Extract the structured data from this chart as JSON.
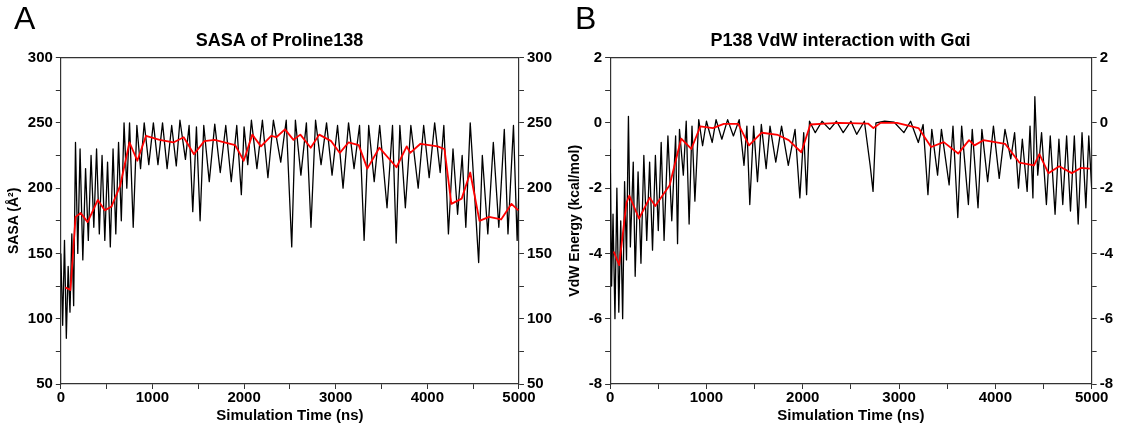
{
  "chart_data": [
    {
      "type": "line",
      "title": "SASA of Proline138",
      "xlabel": "Simulation Time (ns)",
      "ylabel": "SASA (Å²)",
      "annotations": [
        "A"
      ],
      "xlim": [
        0,
        5000
      ],
      "xticks": [
        0,
        {
          "value": 500,
          "label": null
        },
        1000,
        {
          "value": 1500,
          "label": null
        },
        2000,
        {
          "value": 2500,
          "label": null
        },
        3000,
        {
          "value": 3500,
          "label": null
        },
        4000,
        {
          "value": 4500,
          "label": null
        },
        5000
      ],
      "ylim": [
        50,
        300
      ],
      "yticks": [
        50,
        {
          "value": 75,
          "label": null
        },
        100,
        {
          "value": 125,
          "label": null
        },
        150,
        {
          "value": 175,
          "label": null
        },
        200,
        {
          "value": 225,
          "label": null
        },
        250,
        {
          "value": 275,
          "label": null
        },
        300
      ],
      "y2lim": [
        50,
        300
      ],
      "y2ticks": [
        50,
        {
          "value": 75,
          "label": null
        },
        100,
        {
          "value": 125,
          "label": null
        },
        150,
        {
          "value": 175,
          "label": null
        },
        200,
        {
          "value": 225,
          "label": null
        },
        250,
        {
          "value": 275,
          "label": null
        },
        300
      ],
      "grid": false,
      "legend": false,
      "marker": "none",
      "line_style": "solid",
      "series": [
        {
          "color": "#000000",
          "x": [
            0,
            20,
            40,
            60,
            80,
            100,
            120,
            140,
            160,
            185,
            210,
            240,
            270,
            300,
            330,
            360,
            390,
            420,
            450,
            480,
            510,
            540,
            570,
            600,
            630,
            660,
            690,
            720,
            750,
            790,
            830,
            870,
            910,
            960,
            1010,
            1060,
            1110,
            1160,
            1210,
            1260,
            1300,
            1360,
            1400,
            1440,
            1480,
            1520,
            1560,
            1620,
            1680,
            1740,
            1800,
            1860,
            1920,
            1970,
            2000,
            2040,
            2080,
            2140,
            2200,
            2260,
            2320,
            2400,
            2460,
            2520,
            2560,
            2620,
            2680,
            2730,
            2780,
            2840,
            2900,
            2960,
            3020,
            3080,
            3140,
            3200,
            3260,
            3310,
            3360,
            3420,
            3480,
            3560,
            3620,
            3660,
            3700,
            3760,
            3820,
            3900,
            3960,
            4020,
            4080,
            4140,
            4180,
            4230,
            4280,
            4330,
            4380,
            4420,
            4468,
            4520,
            4560,
            4600,
            4660,
            4720,
            4780,
            4840,
            4880,
            4940,
            4980,
            5000
          ],
          "values": [
            150,
            95,
            160,
            85,
            140,
            105,
            165,
            110,
            235,
            150,
            230,
            145,
            215,
            160,
            225,
            170,
            230,
            165,
            225,
            160,
            220,
            155,
            230,
            165,
            235,
            175,
            250,
            200,
            250,
            170,
            248,
            215,
            250,
            218,
            250,
            218,
            250,
            215,
            248,
            217,
            252,
            222,
            248,
            182,
            247,
            175,
            248,
            205,
            249,
            212,
            248,
            205,
            248,
            195,
            247,
            218,
            252,
            215,
            252,
            208,
            252,
            220,
            252,
            155,
            252,
            210,
            250,
            170,
            252,
            218,
            250,
            210,
            248,
            200,
            250,
            215,
            248,
            160,
            248,
            205,
            248,
            185,
            248,
            158,
            248,
            185,
            248,
            200,
            248,
            208,
            250,
            212,
            248,
            165,
            230,
            180,
            225,
            170,
            250,
            190,
            143,
            225,
            165,
            235,
            170,
            245,
            165,
            248,
            160,
            200
          ]
        },
        {
          "color": "#ff0000",
          "x": [
            49,
            105,
            161,
            217,
            292,
            404,
            479,
            554,
            648,
            749,
            835,
            929,
            1079,
            1228,
            1341,
            1453,
            1566,
            1678,
            1903,
            1996,
            2090,
            2184,
            2296,
            2352,
            2446,
            2539,
            2614,
            2727,
            2820,
            2951,
            3045,
            3139,
            3251,
            3345,
            3476,
            3663,
            3775,
            3813,
            3925,
            4112,
            4187,
            4262,
            4375,
            4468,
            4569,
            4674,
            4805,
            4918,
            4993
          ],
          "values": [
            124,
            122,
            178,
            181,
            174,
            191,
            183,
            186,
            202,
            235,
            221,
            240,
            237,
            235,
            239,
            226,
            236,
            237,
            233,
            221,
            241,
            232,
            240,
            239,
            245,
            237,
            241,
            231,
            241,
            236,
            227,
            235,
            233,
            215,
            231,
            216,
            232,
            227,
            234,
            232,
            230,
            188,
            192,
            212,
            175,
            178,
            176,
            188,
            183
          ]
        }
      ]
    },
    {
      "type": "line",
      "title": "P138 VdW interaction with Gαi",
      "xlabel": "Simulation Time (ns)",
      "ylabel": "VdW Energy (kcal/mol)",
      "annotations": [
        "B"
      ],
      "xlim": [
        0,
        5000
      ],
      "xticks": [
        0,
        {
          "value": 500,
          "label": null
        },
        1000,
        {
          "value": 1500,
          "label": null
        },
        2000,
        {
          "value": 2500,
          "label": null
        },
        3000,
        {
          "value": 3500,
          "label": null
        },
        4000,
        {
          "value": 4500,
          "label": null
        },
        5000
      ],
      "ylim": [
        -8,
        2
      ],
      "yticks": [
        -8,
        {
          "value": -7,
          "label": null
        },
        -6,
        {
          "value": -5,
          "label": null
        },
        -4,
        {
          "value": -3,
          "label": null
        },
        -2,
        {
          "value": -1,
          "label": null
        },
        0,
        {
          "value": 1,
          "label": null
        },
        2
      ],
      "y2lim": [
        -8,
        2
      ],
      "y2ticks": [
        -8,
        {
          "value": -7,
          "label": null
        },
        -6,
        {
          "value": -5,
          "label": null
        },
        -4,
        {
          "value": -3,
          "label": null
        },
        -2,
        {
          "value": -1,
          "label": null
        },
        0,
        {
          "value": 1,
          "label": null
        },
        2
      ],
      "grid": false,
      "legend": false,
      "marker": "none",
      "line_style": "solid",
      "series": [
        {
          "color": "#000000",
          "x": [
            0,
            15,
            30,
            50,
            70,
            90,
            110,
            130,
            150,
            170,
            190,
            210,
            240,
            260,
            290,
            320,
            350,
            380,
            410,
            440,
            470,
            500,
            530,
            560,
            600,
            640,
            680,
            700,
            720,
            760,
            790,
            820,
            850,
            880,
            920,
            960,
            1000,
            1060,
            1100,
            1160,
            1220,
            1280,
            1340,
            1390,
            1420,
            1450,
            1490,
            1530,
            1570,
            1620,
            1660,
            1720,
            1780,
            1850,
            1920,
            1970,
            2010,
            2040,
            2070,
            2130,
            2200,
            2280,
            2350,
            2420,
            2500,
            2560,
            2640,
            2700,
            2730,
            2760,
            2850,
            2950,
            3050,
            3120,
            3200,
            3250,
            3300,
            3340,
            3400,
            3440,
            3520,
            3560,
            3610,
            3650,
            3720,
            3760,
            3820,
            3860,
            3920,
            3980,
            4040,
            4100,
            4160,
            4200,
            4240,
            4280,
            4330,
            4360,
            4390,
            4410,
            4440,
            4480,
            4530,
            4570,
            4620,
            4660,
            4700,
            4740,
            4780,
            4820,
            4860,
            4900,
            4940,
            4970,
            5000
          ],
          "values": [
            -0.8,
            -5.0,
            -2.8,
            -6.0,
            -2.0,
            -5.8,
            -3.0,
            -6.0,
            -1.8,
            -4.2,
            0.2,
            -3.8,
            -1.2,
            -4.7,
            -1.5,
            -4.3,
            -1.0,
            -3.6,
            -1.2,
            -3.9,
            -1.0,
            -3.3,
            -0.6,
            -3.6,
            -0.4,
            -3.0,
            -0.4,
            -3.7,
            -0.2,
            -1.6,
            0.05,
            -3.1,
            -0.1,
            -2.4,
            0.1,
            -0.7,
            0.05,
            -0.6,
            0.1,
            -0.5,
            0.1,
            -0.4,
            0.1,
            -1.3,
            -0.1,
            -2.5,
            -0.1,
            -1.8,
            -0.05,
            -1.4,
            -0.1,
            -1.2,
            -0.1,
            -1.3,
            -0.2,
            -2.3,
            -0.3,
            -2.2,
            0.05,
            -0.3,
            0.05,
            -0.2,
            0.05,
            -0.3,
            0.05,
            -0.35,
            0.05,
            -1.3,
            -2.1,
            0.0,
            0.05,
            0.02,
            -0.3,
            0.05,
            -0.6,
            -0.05,
            -2.2,
            -0.2,
            -1.6,
            -0.2,
            -1.9,
            -0.1,
            -2.9,
            -0.1,
            -2.5,
            -0.2,
            -2.6,
            -0.2,
            -1.8,
            -0.1,
            -1.7,
            -0.2,
            -1.1,
            -0.3,
            -2.0,
            -0.5,
            -2.1,
            -0.1,
            -2.3,
            0.8,
            -1.6,
            -0.3,
            -2.5,
            -0.4,
            -2.8,
            -0.5,
            -2.5,
            -0.4,
            -2.7,
            -0.4,
            -3.1,
            -0.3,
            -2.6,
            -0.4,
            -2.0
          ]
        },
        {
          "color": "#ff0000",
          "x": [
            37,
            94,
            169,
            199,
            300,
            412,
            468,
            618,
            738,
            843,
            936,
            1067,
            1180,
            1330,
            1442,
            1573,
            1742,
            1854,
            1985,
            2079,
            2228,
            2378,
            2678,
            2734,
            2809,
            2978,
            3202,
            3333,
            3464,
            3614,
            3727,
            3783,
            3876,
            4101,
            4251,
            4401,
            4457,
            4551,
            4663,
            4794,
            4888,
            4981
          ],
          "values": [
            -3.94,
            -4.36,
            -2.45,
            -2.23,
            -2.93,
            -2.29,
            -2.55,
            -1.91,
            -0.48,
            -0.8,
            -0.11,
            -0.16,
            -0.03,
            -0.03,
            -0.69,
            -0.3,
            -0.37,
            -0.53,
            -0.9,
            -0.05,
            -0.02,
            0,
            -0.02,
            -0.16,
            0,
            0,
            -0.16,
            -0.74,
            -0.59,
            -0.94,
            -0.53,
            -0.69,
            -0.53,
            -0.64,
            -1.22,
            -1.3,
            -0.96,
            -1.54,
            -1.33,
            -1.54,
            -1.38,
            -1.4
          ]
        }
      ]
    }
  ]
}
